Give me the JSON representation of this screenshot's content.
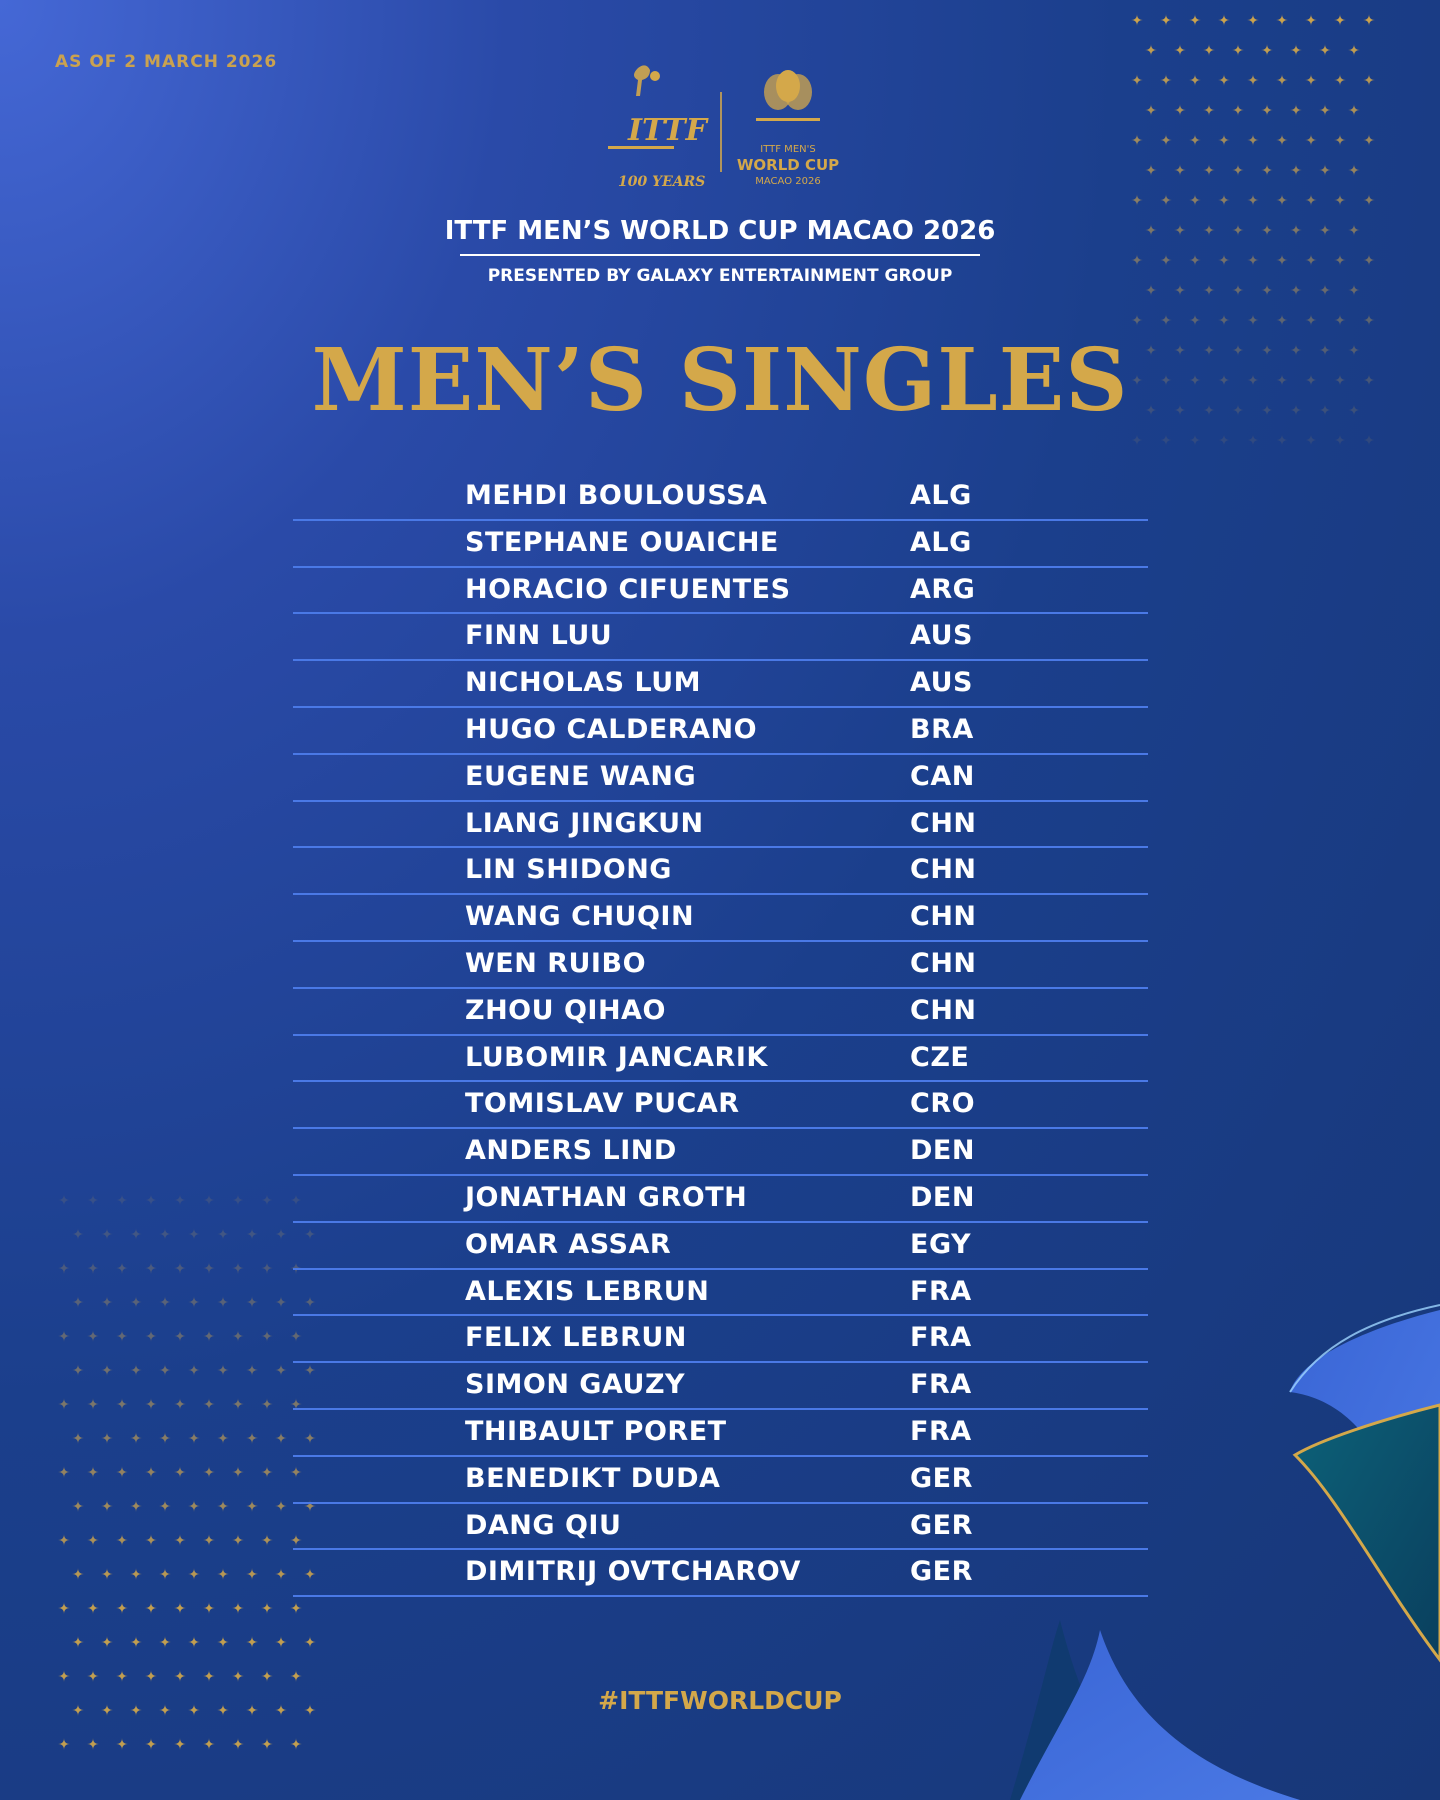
{
  "as_of": "AS OF 2 MARCH 2026",
  "logos": {
    "ittf_letters": "ITTF",
    "ittf_years": "100 YEARS",
    "cup_line1": "ITTF MEN'S",
    "cup_line2": "WORLD CUP",
    "cup_line3": "MACAO 2026"
  },
  "event_title": "ITTF MEN’S WORLD CUP MACAO 2026",
  "presented_by": "PRESENTED BY GALAXY ENTERTAINMENT GROUP",
  "heading": "MEN’S SINGLES",
  "players": [
    {
      "name": "MEHDI BOULOUSSA",
      "nation": "ALG"
    },
    {
      "name": "STEPHANE OUAICHE",
      "nation": "ALG"
    },
    {
      "name": "HORACIO CIFUENTES",
      "nation": "ARG"
    },
    {
      "name": "FINN LUU",
      "nation": "AUS"
    },
    {
      "name": "NICHOLAS LUM",
      "nation": "AUS"
    },
    {
      "name": "HUGO CALDERANO",
      "nation": "BRA"
    },
    {
      "name": "EUGENE WANG",
      "nation": "CAN"
    },
    {
      "name": "LIANG JINGKUN",
      "nation": "CHN"
    },
    {
      "name": "LIN SHIDONG",
      "nation": "CHN"
    },
    {
      "name": "WANG CHUQIN",
      "nation": "CHN"
    },
    {
      "name": "WEN RUIBO",
      "nation": "CHN"
    },
    {
      "name": "ZHOU QIHAO",
      "nation": "CHN"
    },
    {
      "name": "LUBOMIR JANCARIK",
      "nation": "CZE"
    },
    {
      "name": "TOMISLAV PUCAR",
      "nation": "CRO"
    },
    {
      "name": "ANDERS LIND",
      "nation": "DEN"
    },
    {
      "name": "JONATHAN GROTH",
      "nation": "DEN"
    },
    {
      "name": "OMAR ASSAR",
      "nation": "EGY"
    },
    {
      "name": "ALEXIS LEBRUN",
      "nation": "FRA"
    },
    {
      "name": "FELIX LEBRUN",
      "nation": "FRA"
    },
    {
      "name": "SIMON GAUZY",
      "nation": "FRA"
    },
    {
      "name": "THIBAULT PORET",
      "nation": "FRA"
    },
    {
      "name": "BENEDIKT DUDA",
      "nation": "GER"
    },
    {
      "name": "DANG QIU",
      "nation": "GER"
    },
    {
      "name": "DIMITRIJ OVTCHAROV",
      "nation": "GER"
    }
  ],
  "hashtag": "#ITTFWORLDCUP",
  "colors": {
    "gold": "#d4a84a",
    "background": "#1b3f8c",
    "divider": "#4a79e6"
  }
}
